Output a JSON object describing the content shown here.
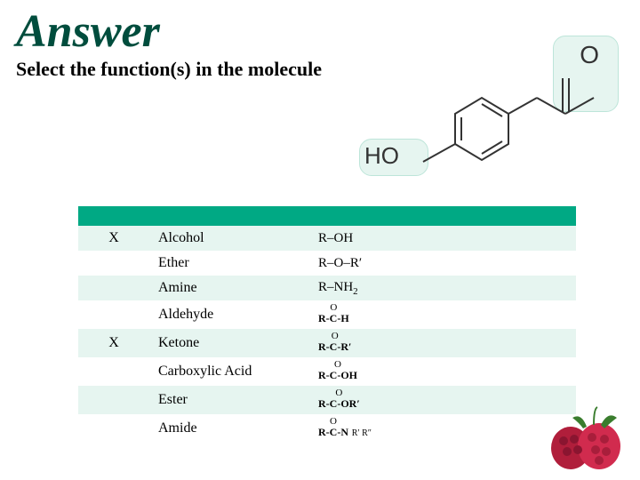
{
  "title": "Answer",
  "subtitle": "Select the function(s) in the molecule",
  "molecule": {
    "ho_label": "HO",
    "o_label": "O"
  },
  "colors": {
    "title_color": "#004d3d",
    "header_bg": "#00a984",
    "even_bg": "#e6f5f0",
    "odd_bg": "#ffffff",
    "highlight_bg": "#e6f5f0"
  },
  "table": {
    "rows": [
      {
        "selected": "X",
        "name": "Alcohol",
        "formula": "R–OH"
      },
      {
        "selected": "",
        "name": "Ether",
        "formula": "R–O–R′"
      },
      {
        "selected": "",
        "name": "Amine",
        "formula_html": "R–NH<span class='sub'>2</span>"
      },
      {
        "selected": "",
        "name": "Aldehyde",
        "formula_chem": {
          "top": "O",
          "mid": "∥",
          "bot": "R-C-H"
        }
      },
      {
        "selected": "X",
        "name": "Ketone",
        "formula_chem": {
          "top": "O",
          "mid": "∥",
          "bot": "R-C-R′"
        }
      },
      {
        "selected": "",
        "name": "Carboxylic Acid",
        "formula_chem": {
          "top": "O",
          "mid": "∥",
          "bot": "R-C-OH"
        }
      },
      {
        "selected": "",
        "name": "Ester",
        "formula_chem": {
          "top": "O",
          "mid": "∥",
          "bot": "R-C-OR′"
        }
      },
      {
        "selected": "",
        "name": "Amide",
        "formula_chem": {
          "top": "O",
          "mid": "∥",
          "bot": "R-C-N",
          "tail": "R′ R″"
        }
      }
    ]
  }
}
